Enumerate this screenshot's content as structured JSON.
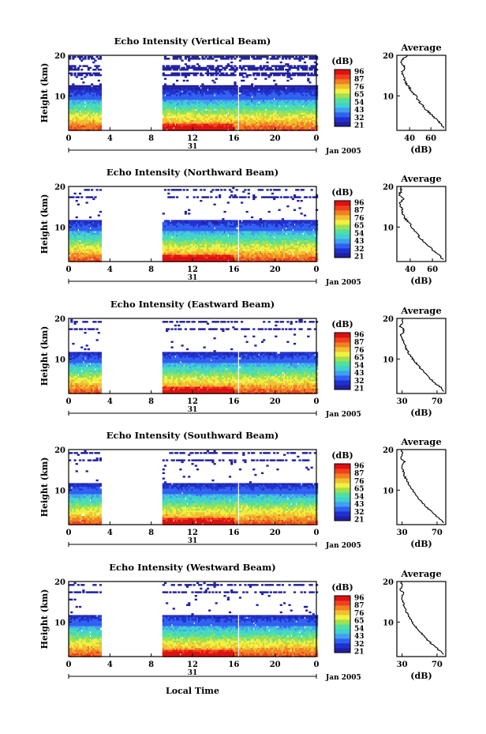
{
  "chart_data": {
    "type": "heatmap",
    "x_axis": {
      "ticks": [
        "0",
        "4",
        "8",
        "12",
        "16",
        "20",
        "0"
      ],
      "range": [
        0,
        24
      ],
      "unit_label": "Local Time",
      "day_label": "31",
      "date_label": "Jan 2005"
    },
    "y_axis": {
      "label": "Height (km)",
      "ticks": [
        "10",
        "20"
      ],
      "range": [
        1.5,
        20
      ]
    },
    "colorbar": {
      "unit": "(dB)",
      "ticks": [
        "96",
        "87",
        "76",
        "65",
        "54",
        "43",
        "32",
        "21"
      ],
      "colors": [
        "#2020a0",
        "#2030d0",
        "#3060f0",
        "#40a0f0",
        "#40d0d0",
        "#50e0a0",
        "#a0e050",
        "#f0f040",
        "#f0c030",
        "#f08020",
        "#f04020",
        "#e01010"
      ]
    },
    "data_gaps": [
      [
        3,
        9
      ],
      [
        16.2,
        16.4
      ]
    ],
    "panels": [
      {
        "title": "Echo Intensity (Vertical Beam)",
        "avg_ticks": [
          "40",
          "60"
        ],
        "avg_ticks_x": [
          40,
          60
        ],
        "avg_range": [
          28,
          74
        ],
        "profile": [
          [
            2,
            72
          ],
          [
            3,
            70
          ],
          [
            4,
            66
          ],
          [
            5,
            62
          ],
          [
            6,
            58
          ],
          [
            7,
            54
          ],
          [
            8,
            51
          ],
          [
            9,
            48
          ],
          [
            10,
            46
          ],
          [
            11,
            42
          ],
          [
            12,
            40
          ],
          [
            13,
            37
          ],
          [
            14,
            35
          ],
          [
            15,
            34
          ],
          [
            16,
            33
          ],
          [
            17,
            36
          ],
          [
            18,
            32
          ],
          [
            19,
            33
          ],
          [
            20,
            38
          ]
        ]
      },
      {
        "title": "Echo Intensity (Northward Beam)",
        "avg_ticks": [
          "40",
          "60"
        ],
        "avg_ticks_x": [
          40,
          60
        ],
        "avg_range": [
          28,
          72
        ],
        "profile": [
          [
            2,
            70
          ],
          [
            3,
            66
          ],
          [
            4,
            62
          ],
          [
            5,
            58
          ],
          [
            6,
            54
          ],
          [
            7,
            50
          ],
          [
            8,
            47
          ],
          [
            9,
            44
          ],
          [
            10,
            41
          ],
          [
            11,
            39
          ],
          [
            12,
            36
          ],
          [
            13,
            34
          ],
          [
            14,
            33
          ],
          [
            15,
            32
          ],
          [
            16,
            31
          ],
          [
            17,
            34
          ],
          [
            18,
            30
          ],
          [
            19,
            32
          ],
          [
            20,
            31
          ]
        ]
      },
      {
        "title": "Echo Intensity (Eastward Beam)",
        "avg_ticks": [
          "30",
          "70"
        ],
        "avg_ticks_x": [
          30,
          70
        ],
        "avg_range": [
          24,
          80
        ],
        "profile": [
          [
            2,
            78
          ],
          [
            3,
            74
          ],
          [
            4,
            68
          ],
          [
            5,
            63
          ],
          [
            6,
            58
          ],
          [
            7,
            54
          ],
          [
            8,
            50
          ],
          [
            9,
            46
          ],
          [
            10,
            42
          ],
          [
            11,
            39
          ],
          [
            12,
            36
          ],
          [
            13,
            34
          ],
          [
            14,
            32
          ],
          [
            15,
            30
          ],
          [
            16,
            29
          ],
          [
            17,
            33
          ],
          [
            18,
            28
          ],
          [
            19,
            31
          ],
          [
            20,
            30
          ]
        ]
      },
      {
        "title": "Echo Intensity (Southward Beam)",
        "avg_ticks": [
          "30",
          "70"
        ],
        "avg_ticks_x": [
          30,
          70
        ],
        "avg_range": [
          24,
          80
        ],
        "profile": [
          [
            2,
            78
          ],
          [
            3,
            73
          ],
          [
            4,
            67
          ],
          [
            5,
            62
          ],
          [
            6,
            57
          ],
          [
            7,
            53
          ],
          [
            8,
            49
          ],
          [
            9,
            45
          ],
          [
            10,
            42
          ],
          [
            11,
            39
          ],
          [
            12,
            36
          ],
          [
            13,
            34
          ],
          [
            14,
            32
          ],
          [
            15,
            31
          ],
          [
            16,
            29
          ],
          [
            17,
            33
          ],
          [
            18,
            28
          ],
          [
            19,
            30
          ],
          [
            20,
            29
          ]
        ]
      },
      {
        "title": "Echo Intensity (Westward Beam)",
        "avg_ticks": [
          "30",
          "70"
        ],
        "avg_ticks_x": [
          30,
          70
        ],
        "avg_range": [
          24,
          80
        ],
        "profile": [
          [
            2,
            77
          ],
          [
            3,
            73
          ],
          [
            4,
            67
          ],
          [
            5,
            62
          ],
          [
            6,
            57
          ],
          [
            7,
            53
          ],
          [
            8,
            49
          ],
          [
            9,
            45
          ],
          [
            10,
            42
          ],
          [
            11,
            39
          ],
          [
            12,
            36
          ],
          [
            13,
            34
          ],
          [
            14,
            32
          ],
          [
            15,
            31
          ],
          [
            16,
            29
          ],
          [
            17,
            32
          ],
          [
            18,
            28
          ],
          [
            19,
            30
          ],
          [
            20,
            29
          ]
        ]
      }
    ],
    "avg_panel": {
      "title": "Average",
      "x_unit": "(dB)",
      "y_ticks": [
        "10",
        "20"
      ]
    }
  }
}
